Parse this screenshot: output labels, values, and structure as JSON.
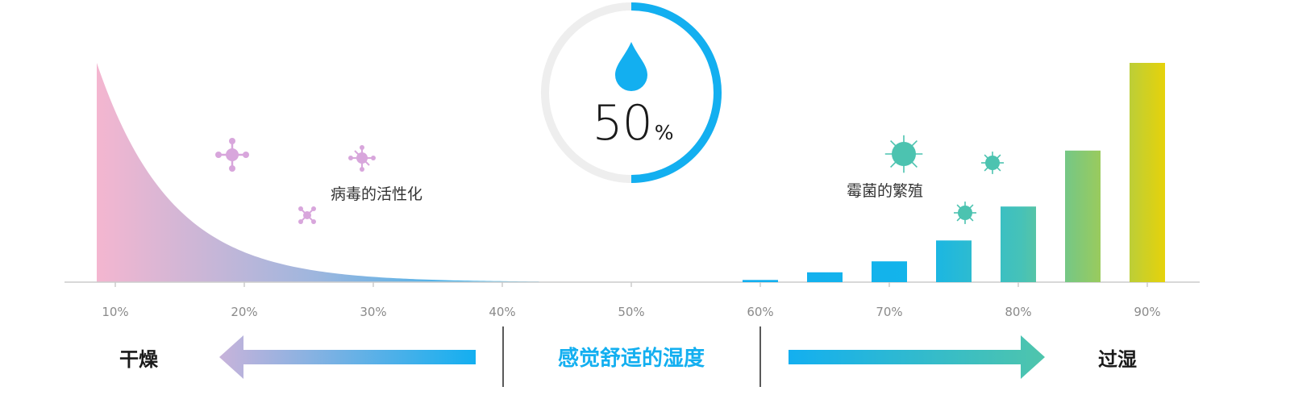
{
  "chart_data": {
    "type": "bar",
    "x_ticks": [
      "10%",
      "20%",
      "30%",
      "40%",
      "50%",
      "60%",
      "70%",
      "80%",
      "90%"
    ],
    "x_range": [
      10,
      90
    ],
    "bars": [
      {
        "x": 60,
        "value": 2
      },
      {
        "x": 65,
        "value": 9
      },
      {
        "x": 70,
        "value": 19
      },
      {
        "x": 75,
        "value": 38
      },
      {
        "x": 80,
        "value": 69
      },
      {
        "x": 85,
        "value": 120
      },
      {
        "x": 90,
        "value": 200
      }
    ],
    "curve_label": "病毒的活性化",
    "bars_label": "霉菌的繁殖",
    "comfort_range": [
      40,
      60
    ]
  },
  "gauge": {
    "value": 50,
    "value_text": "50",
    "unit": "%",
    "accent_color": "#13aff0",
    "track_color": "#eeeeee",
    "icon": "water-drop-icon"
  },
  "labels": {
    "dry": "干燥",
    "humid": "过湿",
    "comfort": "感觉舒适的湿度"
  },
  "colors": {
    "virus": "#d8a6dc",
    "mold": "#4cc3b0",
    "curve_start": "#f4b6d0",
    "curve_end": "#13aff0",
    "dry_arrow_start": "#c8b3da",
    "dry_arrow_end": "#13aff0",
    "humid_arrow_start": "#13aff0",
    "humid_arrow_end": "#4fc5ac",
    "bar_end": "#e6d20a"
  }
}
